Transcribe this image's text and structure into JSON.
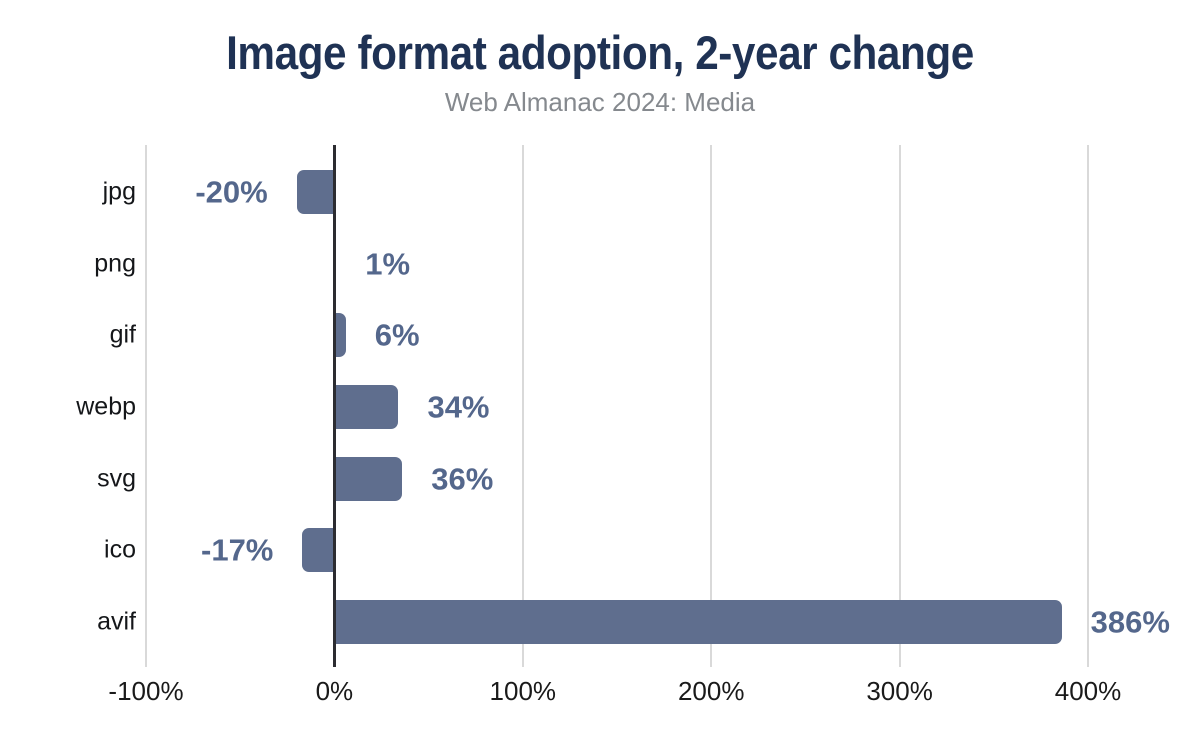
{
  "chart_data": {
    "type": "bar",
    "orientation": "horizontal",
    "title": "Image format adoption, 2-year change",
    "subtitle": "Web Almanac 2024: Media",
    "categories": [
      "jpg",
      "png",
      "gif",
      "webp",
      "svg",
      "ico",
      "avif"
    ],
    "values": [
      -20,
      1,
      6,
      34,
      36,
      -17,
      386
    ],
    "value_labels": [
      "-20%",
      "1%",
      "6%",
      "34%",
      "36%",
      "-17%",
      "386%"
    ],
    "x_ticks": [
      -100,
      0,
      100,
      200,
      300,
      400
    ],
    "x_tick_labels": [
      "-100%",
      "0%",
      "100%",
      "200%",
      "300%",
      "400%"
    ],
    "xlim": [
      -100,
      400
    ],
    "grid": true,
    "legend": "none",
    "colors": {
      "bar": "#5f6e8e",
      "value_label": "#54678c",
      "title": "#1f3254",
      "subtitle": "#85898e",
      "category_label": "#141619",
      "tick_label": "#1a1a1a",
      "gridline": "#d9d9d9",
      "zero_line": "#2c2c31",
      "background": "#ffffff"
    }
  }
}
